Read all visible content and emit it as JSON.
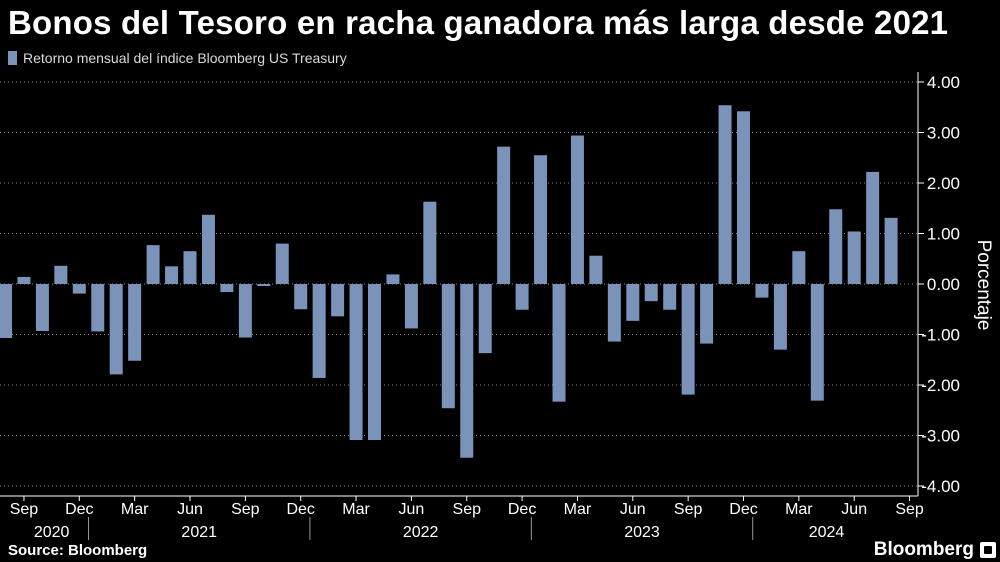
{
  "title": "Bonos del Tesoro en racha ganadora más larga desde 2021",
  "legend_label": "Retorno mensual del índice Bloomberg US Treasury",
  "source": "Source: Bloomberg",
  "brand": "Bloomberg",
  "colors": {
    "bar": "#7b93b9",
    "grid": "#ffffff",
    "background": "#000000"
  },
  "chart_data": {
    "type": "bar",
    "title": "Bonos del Tesoro en racha ganadora más larga desde 2021",
    "ylabel": "Porcentaje",
    "xlabel": "",
    "ylim": [
      -4,
      4
    ],
    "y_ticks": [
      4,
      3,
      2,
      1,
      0,
      -1,
      -2,
      -3,
      -4
    ],
    "y_tick_labels": [
      "4.00",
      "3.00",
      "2.00",
      "1.00",
      "0.00",
      "-1.00",
      "-2.00",
      "-3.00",
      "-4.00"
    ],
    "series": [
      {
        "name": "Retorno mensual del índice Bloomberg US Treasury",
        "categories": [
          "Ago 2020",
          "Sep 2020",
          "Oct 2020",
          "Nov 2020",
          "Dic 2020",
          "Ene 2021",
          "Feb 2021",
          "Mar 2021",
          "Abr 2021",
          "May 2021",
          "Jun 2021",
          "Jul 2021",
          "Ago 2021",
          "Sep 2021",
          "Oct 2021",
          "Nov 2021",
          "Dic 2021",
          "Ene 2022",
          "Feb 2022",
          "Mar 2022",
          "Abr 2022",
          "May 2022",
          "Jun 2022",
          "Jul 2022",
          "Ago 2022",
          "Sep 2022",
          "Oct 2022",
          "Nov 2022",
          "Dic 2022",
          "Ene 2023",
          "Feb 2023",
          "Mar 2023",
          "Abr 2023",
          "May 2023",
          "Jun 2023",
          "Jul 2023",
          "Ago 2023",
          "Sep 2023",
          "Oct 2023",
          "Nov 2023",
          "Dic 2023",
          "Ene 2024",
          "Feb 2024",
          "Mar 2024",
          "Abr 2024",
          "May 2024",
          "Jun 2024",
          "Jul 2024",
          "Ago 2024"
        ],
        "values": [
          -1.07,
          0.14,
          -0.93,
          0.36,
          -0.19,
          -0.94,
          -1.79,
          -1.52,
          0.77,
          0.35,
          0.65,
          1.37,
          -0.16,
          -1.06,
          -0.04,
          0.8,
          -0.5,
          -1.86,
          -0.64,
          -3.09,
          -3.09,
          0.19,
          -0.88,
          1.63,
          -2.46,
          -3.44,
          -1.37,
          2.72,
          -0.51,
          2.55,
          -2.33,
          2.94,
          0.56,
          -1.14,
          -0.73,
          -0.34,
          -0.51,
          -2.19,
          -1.18,
          3.54,
          3.42,
          -0.27,
          -1.3,
          0.65,
          -2.31,
          1.48,
          1.04,
          2.22,
          1.31
        ]
      }
    ],
    "x_month_labels": [
      "Sep",
      "Dec",
      "Mar",
      "Jun",
      "Sep",
      "Dec",
      "Mar",
      "Jun",
      "Sep",
      "Dec",
      "Mar",
      "Jun",
      "Sep",
      "Dec",
      "Mar",
      "Jun",
      "Sep"
    ],
    "x_year_labels": [
      "2020",
      "2021",
      "2022",
      "2023",
      "2024"
    ]
  }
}
